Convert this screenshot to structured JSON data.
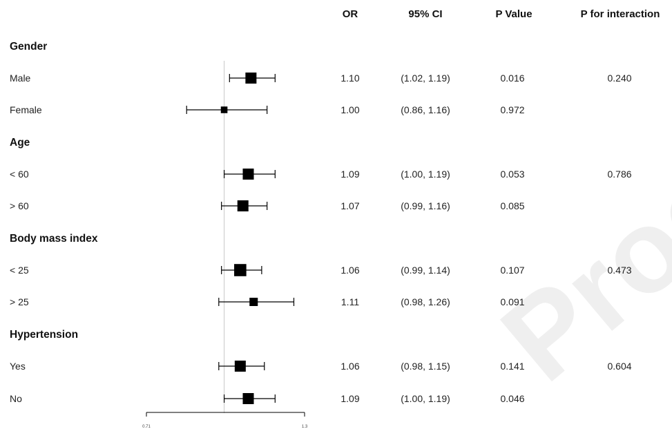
{
  "columns": {
    "or": "OR",
    "ci": "95% CI",
    "p": "P Value",
    "pint": "P for interaction"
  },
  "groups": [
    {
      "label": "Gender",
      "rows": [
        {
          "label": "Male",
          "or": "1.10",
          "ci": "(1.02, 1.19)",
          "p": "0.016",
          "pint": "0.240"
        },
        {
          "label": "Female",
          "or": "1.00",
          "ci": "(0.86, 1.16)",
          "p": "0.972",
          "pint": ""
        }
      ]
    },
    {
      "label": "Age",
      "rows": [
        {
          "label": "< 60",
          "or": "1.09",
          "ci": "(1.00, 1.19)",
          "p": "0.053",
          "pint": "0.786"
        },
        {
          "label": "> 60",
          "or": "1.07",
          "ci": "(0.99, 1.16)",
          "p": "0.085",
          "pint": ""
        }
      ]
    },
    {
      "label": "Body mass index",
      "rows": [
        {
          "label": "< 25",
          "or": "1.06",
          "ci": "(0.99, 1.14)",
          "p": "0.107",
          "pint": "0.473"
        },
        {
          "label": "> 25",
          "or": "1.11",
          "ci": "(0.98, 1.26)",
          "p": "0.091",
          "pint": ""
        }
      ]
    },
    {
      "label": "Hypertension",
      "rows": [
        {
          "label": "Yes",
          "or": "1.06",
          "ci": "(0.98, 1.15)",
          "p": "0.141",
          "pint": "0.604"
        },
        {
          "label": "No",
          "or": "1.09",
          "ci": "(1.00, 1.19)",
          "p": "0.046",
          "pint": ""
        }
      ]
    }
  ],
  "watermark": "Proof",
  "chart_data": {
    "type": "forest",
    "reference_line": 1.0,
    "xlim": [
      0.71,
      1.3
    ],
    "x_ticks": [
      "0.71",
      "1.3"
    ],
    "series": [
      {
        "category": "Male",
        "or": 1.1,
        "lower": 1.02,
        "upper": 1.19,
        "weight": 1.0
      },
      {
        "category": "Female",
        "or": 1.0,
        "lower": 0.86,
        "upper": 1.16,
        "weight": 0.6
      },
      {
        "category": "< 60",
        "or": 1.09,
        "lower": 1.0,
        "upper": 1.19,
        "weight": 1.0
      },
      {
        "category": "> 60",
        "or": 1.07,
        "lower": 0.99,
        "upper": 1.16,
        "weight": 1.0
      },
      {
        "category": "< 25",
        "or": 1.06,
        "lower": 0.99,
        "upper": 1.14,
        "weight": 1.1
      },
      {
        "category": "> 25",
        "or": 1.11,
        "lower": 0.98,
        "upper": 1.26,
        "weight": 0.75
      },
      {
        "category": "Yes",
        "or": 1.06,
        "lower": 0.98,
        "upper": 1.15,
        "weight": 1.0
      },
      {
        "category": "No",
        "or": 1.09,
        "lower": 1.0,
        "upper": 1.19,
        "weight": 1.0
      }
    ]
  }
}
